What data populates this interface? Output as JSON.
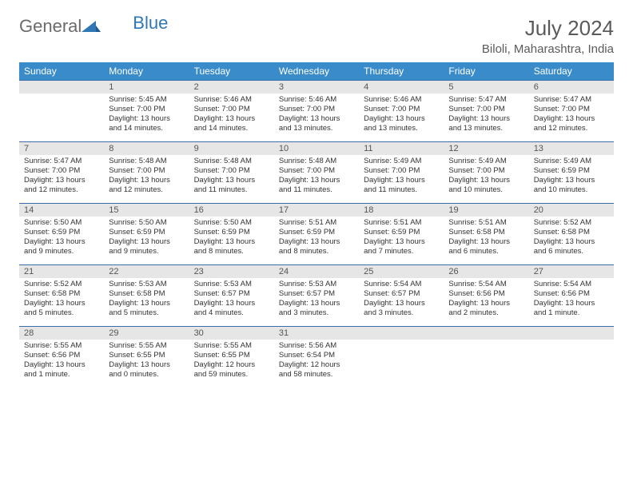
{
  "brand": {
    "text1": "General",
    "text2": "Blue",
    "color_gray": "#6b6b6b",
    "color_blue": "#2f77b5"
  },
  "title": "July 2024",
  "location": "Biloli, Maharashtra, India",
  "header_bg": "#3a8bc9",
  "header_fg": "#ffffff",
  "border_color": "#3a6ea8",
  "daynum_bg": "#e6e6e6",
  "dow": [
    "Sunday",
    "Monday",
    "Tuesday",
    "Wednesday",
    "Thursday",
    "Friday",
    "Saturday"
  ],
  "weeks": [
    [
      {
        "n": "",
        "sr": "",
        "ss": "",
        "dl": ""
      },
      {
        "n": "1",
        "sr": "5:45 AM",
        "ss": "7:00 PM",
        "dl": "13 hours and 14 minutes."
      },
      {
        "n": "2",
        "sr": "5:46 AM",
        "ss": "7:00 PM",
        "dl": "13 hours and 14 minutes."
      },
      {
        "n": "3",
        "sr": "5:46 AM",
        "ss": "7:00 PM",
        "dl": "13 hours and 13 minutes."
      },
      {
        "n": "4",
        "sr": "5:46 AM",
        "ss": "7:00 PM",
        "dl": "13 hours and 13 minutes."
      },
      {
        "n": "5",
        "sr": "5:47 AM",
        "ss": "7:00 PM",
        "dl": "13 hours and 13 minutes."
      },
      {
        "n": "6",
        "sr": "5:47 AM",
        "ss": "7:00 PM",
        "dl": "13 hours and 12 minutes."
      }
    ],
    [
      {
        "n": "7",
        "sr": "5:47 AM",
        "ss": "7:00 PM",
        "dl": "13 hours and 12 minutes."
      },
      {
        "n": "8",
        "sr": "5:48 AM",
        "ss": "7:00 PM",
        "dl": "13 hours and 12 minutes."
      },
      {
        "n": "9",
        "sr": "5:48 AM",
        "ss": "7:00 PM",
        "dl": "13 hours and 11 minutes."
      },
      {
        "n": "10",
        "sr": "5:48 AM",
        "ss": "7:00 PM",
        "dl": "13 hours and 11 minutes."
      },
      {
        "n": "11",
        "sr": "5:49 AM",
        "ss": "7:00 PM",
        "dl": "13 hours and 11 minutes."
      },
      {
        "n": "12",
        "sr": "5:49 AM",
        "ss": "7:00 PM",
        "dl": "13 hours and 10 minutes."
      },
      {
        "n": "13",
        "sr": "5:49 AM",
        "ss": "6:59 PM",
        "dl": "13 hours and 10 minutes."
      }
    ],
    [
      {
        "n": "14",
        "sr": "5:50 AM",
        "ss": "6:59 PM",
        "dl": "13 hours and 9 minutes."
      },
      {
        "n": "15",
        "sr": "5:50 AM",
        "ss": "6:59 PM",
        "dl": "13 hours and 9 minutes."
      },
      {
        "n": "16",
        "sr": "5:50 AM",
        "ss": "6:59 PM",
        "dl": "13 hours and 8 minutes."
      },
      {
        "n": "17",
        "sr": "5:51 AM",
        "ss": "6:59 PM",
        "dl": "13 hours and 8 minutes."
      },
      {
        "n": "18",
        "sr": "5:51 AM",
        "ss": "6:59 PM",
        "dl": "13 hours and 7 minutes."
      },
      {
        "n": "19",
        "sr": "5:51 AM",
        "ss": "6:58 PM",
        "dl": "13 hours and 6 minutes."
      },
      {
        "n": "20",
        "sr": "5:52 AM",
        "ss": "6:58 PM",
        "dl": "13 hours and 6 minutes."
      }
    ],
    [
      {
        "n": "21",
        "sr": "5:52 AM",
        "ss": "6:58 PM",
        "dl": "13 hours and 5 minutes."
      },
      {
        "n": "22",
        "sr": "5:53 AM",
        "ss": "6:58 PM",
        "dl": "13 hours and 5 minutes."
      },
      {
        "n": "23",
        "sr": "5:53 AM",
        "ss": "6:57 PM",
        "dl": "13 hours and 4 minutes."
      },
      {
        "n": "24",
        "sr": "5:53 AM",
        "ss": "6:57 PM",
        "dl": "13 hours and 3 minutes."
      },
      {
        "n": "25",
        "sr": "5:54 AM",
        "ss": "6:57 PM",
        "dl": "13 hours and 3 minutes."
      },
      {
        "n": "26",
        "sr": "5:54 AM",
        "ss": "6:56 PM",
        "dl": "13 hours and 2 minutes."
      },
      {
        "n": "27",
        "sr": "5:54 AM",
        "ss": "6:56 PM",
        "dl": "13 hours and 1 minute."
      }
    ],
    [
      {
        "n": "28",
        "sr": "5:55 AM",
        "ss": "6:56 PM",
        "dl": "13 hours and 1 minute."
      },
      {
        "n": "29",
        "sr": "5:55 AM",
        "ss": "6:55 PM",
        "dl": "13 hours and 0 minutes."
      },
      {
        "n": "30",
        "sr": "5:55 AM",
        "ss": "6:55 PM",
        "dl": "12 hours and 59 minutes."
      },
      {
        "n": "31",
        "sr": "5:56 AM",
        "ss": "6:54 PM",
        "dl": "12 hours and 58 minutes."
      },
      {
        "n": "",
        "sr": "",
        "ss": "",
        "dl": ""
      },
      {
        "n": "",
        "sr": "",
        "ss": "",
        "dl": ""
      },
      {
        "n": "",
        "sr": "",
        "ss": "",
        "dl": ""
      }
    ]
  ],
  "labels": {
    "sunrise": "Sunrise: ",
    "sunset": "Sunset: ",
    "daylight": "Daylight: "
  }
}
